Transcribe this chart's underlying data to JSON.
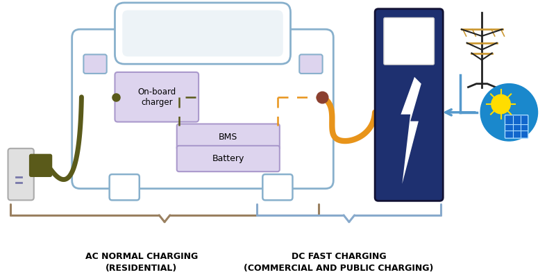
{
  "bg_color": "#ffffff",
  "car_outline_color": "#88b0cc",
  "box_fill": "#ddd4ee",
  "box_edge": "#aa99cc",
  "charger_color": "#1e3070",
  "cable_ac_color": "#5a5a1a",
  "cable_dc_color": "#e8941a",
  "dashed_green": "#5a5a1a",
  "dashed_orange": "#e8941a",
  "connector_color": "#8B4030",
  "text_color": "#000000",
  "label_ac": "AC NORMAL CHARGING\n(RESIDENTIAL)",
  "label_dc": "DC FAST CHARGING\n(COMMERCIAL AND PUBLIC CHARGING)",
  "onboard_label": "On-board\ncharger",
  "bms_label": "BMS",
  "battery_label": "Battery",
  "brace_color_ac": "#9a8060",
  "brace_color_dc": "#88aacc",
  "arrow_color": "#5599cc",
  "solar_blue": "#1a88cc",
  "tower_dark": "#222222",
  "tower_orange": "#cc9933",
  "mirror_fill": "#ddd4ee",
  "outlet_fill": "#e0e0e0",
  "outlet_edge": "#aaaaaa"
}
